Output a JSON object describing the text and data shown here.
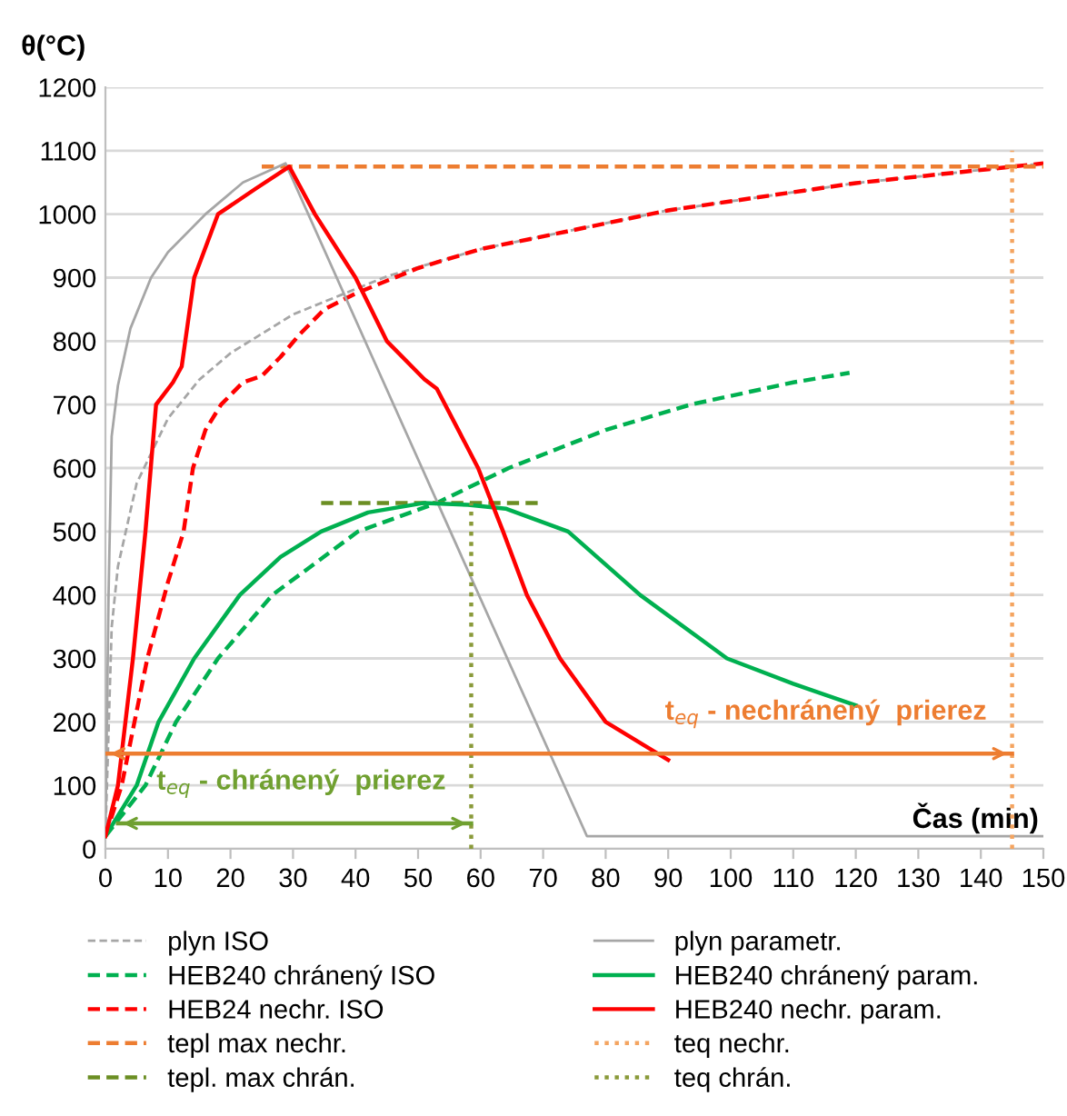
{
  "chart_data": {
    "type": "line",
    "xlabel": "Čas (min)",
    "ylabel": "θ(°C)",
    "xlim": [
      0,
      150
    ],
    "xticks": [
      0,
      10,
      20,
      30,
      40,
      50,
      60,
      70,
      80,
      90,
      100,
      110,
      120,
      130,
      140,
      150
    ],
    "ylim": [
      0,
      1200
    ],
    "yticks": [
      0,
      100,
      200,
      300,
      400,
      500,
      600,
      700,
      800,
      900,
      1000,
      1100,
      1200
    ],
    "grid": "y",
    "legend": "bottom",
    "series": [
      {
        "name": "plyn ISO",
        "color": "#a6a6a6",
        "line_style": "dashed",
        "x": [
          0,
          1,
          2,
          5,
          10,
          15,
          20,
          30,
          45,
          60,
          90,
          120,
          150
        ],
        "values": [
          20,
          349,
          445,
          576,
          678,
          739,
          781,
          842,
          902,
          945,
          1006,
          1049,
          1080
        ]
      },
      {
        "name": "HEB240 chránený ISO",
        "color": "#00b050",
        "line_style": "dashed",
        "x": [
          0,
          6.4,
          11.3,
          18,
          26.7,
          40.4,
          53,
          64.5,
          80,
          93.6,
          110,
          119
        ],
        "values": [
          20,
          100,
          200,
          300,
          400,
          500,
          545,
          600,
          660,
          700,
          735,
          750
        ]
      },
      {
        "name": "HEB24 nechr. ISO",
        "color": "#ff0000",
        "line_style": "dashed",
        "x": [
          0,
          2.6,
          6.7,
          10,
          12.5,
          14,
          16,
          18.5,
          22,
          25,
          28,
          31,
          35,
          40,
          50,
          60,
          70,
          90,
          120,
          150
        ],
        "values": [
          20,
          100,
          300,
          420,
          500,
          600,
          660,
          700,
          735,
          745,
          775,
          810,
          850,
          875,
          915,
          945,
          965,
          1006,
          1049,
          1080
        ]
      },
      {
        "name": "tepl max nechr.",
        "color": "#ed7d31",
        "line_style": "dashed",
        "x": [
          25,
          150
        ],
        "values": [
          1075,
          1075
        ]
      },
      {
        "name": "tepl. max chrán.",
        "color": "#6b8e23",
        "line_style": "dashed",
        "x": [
          34.5,
          69.5
        ],
        "values": [
          545,
          545
        ]
      },
      {
        "name": "plyn parametr.",
        "color": "#a6a6a6",
        "line_style": "solid",
        "x": [
          0,
          0.5,
          1,
          2,
          4,
          7.3,
          10,
          16,
          22,
          28.8,
          77,
          150
        ],
        "values": [
          20,
          400,
          650,
          730,
          820,
          900,
          940,
          1000,
          1050,
          1080,
          20,
          20
        ]
      },
      {
        "name": "HEB240 chránený param.",
        "color": "#00b050",
        "line_style": "solid",
        "x": [
          0,
          5,
          8.5,
          14.2,
          21.5,
          28,
          34.5,
          42,
          51,
          58,
          64,
          74,
          85.5,
          99.4,
          110,
          120
        ],
        "values": [
          20,
          100,
          200,
          300,
          400,
          460,
          500,
          530,
          545,
          542,
          536,
          500,
          400,
          300,
          260,
          226
        ]
      },
      {
        "name": "HEB240 nechr. param.",
        "color": "#ff0000",
        "line_style": "solid",
        "x": [
          0,
          2,
          4.4,
          6.4,
          8.1,
          10.8,
          12.2,
          14.2,
          18,
          24,
          29.4,
          33.5,
          40,
          45,
          51,
          53,
          59.6,
          63.6,
          67.4,
          72.7,
          80,
          90
        ],
        "values": [
          20,
          100,
          300,
          500,
          700,
          735,
          760,
          900,
          1000,
          1040,
          1075,
          1000,
          900,
          800,
          740,
          725,
          600,
          500,
          400,
          300,
          200,
          140
        ]
      },
      {
        "name": "teq nechr.",
        "color": "#f4a460",
        "line_style": "dotted",
        "x": [
          145,
          145
        ],
        "values": [
          0,
          1100
        ]
      },
      {
        "name": "teq chrán.",
        "color": "#8a9a3a",
        "line_style": "dotted",
        "x": [
          58.5,
          58.5
        ],
        "values": [
          0,
          545
        ]
      },
      {
        "color": "#ed7d31",
        "line_style": "solid",
        "x": [
          0,
          145
        ],
        "values": [
          150,
          150
        ]
      },
      {
        "color": "#70a030",
        "line_style": "solid",
        "x": [
          2,
          58.5
        ],
        "values": [
          40,
          40
        ]
      }
    ],
    "annotations": [
      "t$_{eq}$ - nechránený  prierez",
      "t$_{eq}$ - chránený  prierez"
    ]
  }
}
